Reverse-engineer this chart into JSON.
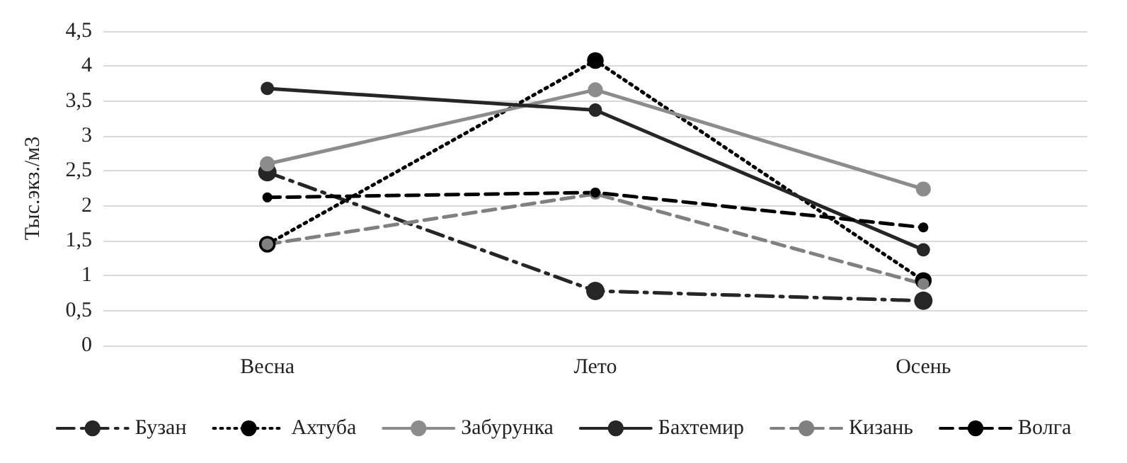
{
  "chart_data": {
    "type": "line",
    "ylabel": "Тыс.экз./м3",
    "categories": [
      "Весна",
      "Лето",
      "Осень"
    ],
    "series": [
      {
        "name": "Бузан",
        "color": "#262626",
        "line_style": "dashdot",
        "values": [
          2.48,
          0.78,
          0.64
        ]
      },
      {
        "name": "Ахтуба",
        "color": "#000000",
        "line_style": "dotted",
        "values": [
          1.45,
          4.08,
          0.93
        ]
      },
      {
        "name": "Забурунка",
        "color": "#8c8c8c",
        "line_style": "solid",
        "values": [
          2.6,
          3.66,
          2.24
        ]
      },
      {
        "name": "Бахтемир",
        "color": "#262626",
        "line_style": "solid",
        "values": [
          3.68,
          3.37,
          1.37
        ]
      },
      {
        "name": "Кизань",
        "color": "#808080",
        "line_style": "dashed",
        "values": [
          1.45,
          2.17,
          0.88
        ]
      },
      {
        "name": "Волга",
        "color": "#000000",
        "line_style": "dashed",
        "values": [
          2.12,
          2.19,
          1.69
        ]
      }
    ],
    "ylim": [
      0,
      4.5
    ],
    "yticks": [
      0,
      {
        "value": 0.5,
        "label": "0,5"
      },
      1,
      {
        "value": 1.5,
        "label": "1,5"
      },
      2,
      {
        "value": 2.5,
        "label": "2,5"
      },
      3,
      {
        "value": 3.5,
        "label": "3,5"
      },
      4,
      {
        "value": 4.5,
        "label": "4,5"
      }
    ],
    "grid": "y",
    "legend": "bottom",
    "marker": "circle"
  }
}
